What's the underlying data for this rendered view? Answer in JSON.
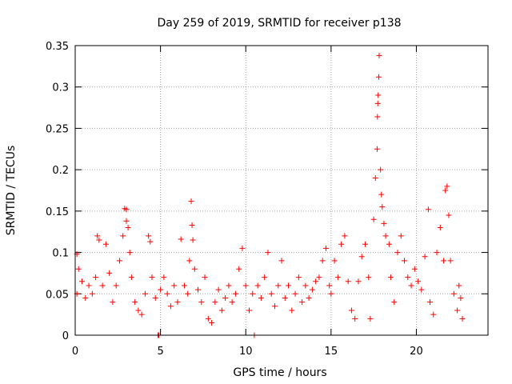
{
  "chart_data": {
    "type": "scatter",
    "title": "Day 259 of 2019, SRMTID for receiver p138",
    "xlabel": "GPS time / hours",
    "ylabel": "SRMTID / TECUs",
    "xlim": [
      0,
      24.2
    ],
    "ylim": [
      0,
      0.35
    ],
    "x_ticks": [
      0,
      5,
      10,
      15,
      20
    ],
    "x_tick_labels": [
      "0",
      "5",
      "10",
      "15",
      "20"
    ],
    "y_ticks": [
      0,
      0.05,
      0.1,
      0.15,
      0.2,
      0.25,
      0.3,
      0.35
    ],
    "y_tick_labels": [
      "0",
      "0.05",
      "0.1",
      "0.15",
      "0.2",
      "0.25",
      "0.3",
      "0.35"
    ],
    "grid": true,
    "marker": "+",
    "color": "#ff0000",
    "series": [
      {
        "name": "SRMTID",
        "points": [
          [
            0.1,
            0.05
          ],
          [
            0.1,
            0.098
          ],
          [
            0.2,
            0.08
          ],
          [
            0.4,
            0.065
          ],
          [
            0.6,
            0.045
          ],
          [
            0.8,
            0.06
          ],
          [
            1.0,
            0.05
          ],
          [
            1.2,
            0.07
          ],
          [
            1.3,
            0.12
          ],
          [
            1.4,
            0.115
          ],
          [
            1.6,
            0.06
          ],
          [
            1.8,
            0.11
          ],
          [
            2.0,
            0.075
          ],
          [
            2.2,
            0.04
          ],
          [
            2.4,
            0.06
          ],
          [
            2.6,
            0.09
          ],
          [
            2.8,
            0.12
          ],
          [
            2.9,
            0.153
          ],
          [
            3.0,
            0.152
          ],
          [
            3.0,
            0.138
          ],
          [
            3.1,
            0.13
          ],
          [
            3.2,
            0.1
          ],
          [
            3.3,
            0.07
          ],
          [
            3.5,
            0.04
          ],
          [
            3.7,
            0.03
          ],
          [
            3.9,
            0.025
          ],
          [
            4.1,
            0.05
          ],
          [
            4.3,
            0.12
          ],
          [
            4.4,
            0.113
          ],
          [
            4.5,
            0.07
          ],
          [
            4.7,
            0.045
          ],
          [
            4.85,
            0.0
          ],
          [
            4.9,
            0.0
          ],
          [
            5.0,
            0.055
          ],
          [
            5.2,
            0.07
          ],
          [
            5.4,
            0.05
          ],
          [
            5.6,
            0.035
          ],
          [
            5.8,
            0.06
          ],
          [
            6.0,
            0.04
          ],
          [
            6.2,
            0.116
          ],
          [
            6.4,
            0.06
          ],
          [
            6.6,
            0.05
          ],
          [
            6.7,
            0.09
          ],
          [
            6.8,
            0.162
          ],
          [
            6.85,
            0.133
          ],
          [
            6.9,
            0.115
          ],
          [
            7.0,
            0.08
          ],
          [
            7.2,
            0.055
          ],
          [
            7.4,
            0.04
          ],
          [
            7.6,
            0.07
          ],
          [
            7.8,
            0.02
          ],
          [
            8.0,
            0.015
          ],
          [
            8.2,
            0.04
          ],
          [
            8.4,
            0.055
          ],
          [
            8.6,
            0.03
          ],
          [
            8.8,
            0.045
          ],
          [
            9.0,
            0.06
          ],
          [
            9.2,
            0.04
          ],
          [
            9.4,
            0.05
          ],
          [
            9.6,
            0.08
          ],
          [
            9.8,
            0.105
          ],
          [
            10.0,
            0.06
          ],
          [
            10.2,
            0.03
          ],
          [
            10.4,
            0.05
          ],
          [
            10.5,
            0.0
          ],
          [
            10.7,
            0.06
          ],
          [
            10.9,
            0.045
          ],
          [
            11.1,
            0.07
          ],
          [
            11.3,
            0.1
          ],
          [
            11.5,
            0.05
          ],
          [
            11.7,
            0.035
          ],
          [
            11.9,
            0.06
          ],
          [
            12.1,
            0.09
          ],
          [
            12.3,
            0.045
          ],
          [
            12.5,
            0.06
          ],
          [
            12.7,
            0.03
          ],
          [
            12.9,
            0.05
          ],
          [
            13.1,
            0.07
          ],
          [
            13.3,
            0.04
          ],
          [
            13.5,
            0.06
          ],
          [
            13.7,
            0.045
          ],
          [
            13.9,
            0.055
          ],
          [
            14.1,
            0.065
          ],
          [
            14.3,
            0.07
          ],
          [
            14.5,
            0.09
          ],
          [
            14.7,
            0.105
          ],
          [
            14.9,
            0.06
          ],
          [
            15.0,
            0.05
          ],
          [
            15.2,
            0.09
          ],
          [
            15.4,
            0.07
          ],
          [
            15.6,
            0.11
          ],
          [
            15.8,
            0.12
          ],
          [
            16.0,
            0.065
          ],
          [
            16.2,
            0.03
          ],
          [
            16.4,
            0.02
          ],
          [
            16.6,
            0.065
          ],
          [
            16.8,
            0.095
          ],
          [
            17.0,
            0.11
          ],
          [
            17.2,
            0.07
          ],
          [
            17.3,
            0.02
          ],
          [
            17.5,
            0.14
          ],
          [
            17.6,
            0.19
          ],
          [
            17.7,
            0.225
          ],
          [
            17.72,
            0.264
          ],
          [
            17.74,
            0.28
          ],
          [
            17.76,
            0.29
          ],
          [
            17.8,
            0.312
          ],
          [
            17.82,
            0.338
          ],
          [
            17.9,
            0.2
          ],
          [
            17.95,
            0.17
          ],
          [
            18.0,
            0.155
          ],
          [
            18.1,
            0.135
          ],
          [
            18.2,
            0.12
          ],
          [
            18.4,
            0.11
          ],
          [
            18.5,
            0.07
          ],
          [
            18.7,
            0.04
          ],
          [
            18.9,
            0.1
          ],
          [
            19.1,
            0.12
          ],
          [
            19.3,
            0.09
          ],
          [
            19.5,
            0.07
          ],
          [
            19.7,
            0.06
          ],
          [
            19.9,
            0.08
          ],
          [
            20.1,
            0.065
          ],
          [
            20.3,
            0.055
          ],
          [
            20.5,
            0.095
          ],
          [
            20.7,
            0.152
          ],
          [
            20.8,
            0.04
          ],
          [
            21.0,
            0.025
          ],
          [
            21.2,
            0.1
          ],
          [
            21.4,
            0.13
          ],
          [
            21.6,
            0.09
          ],
          [
            21.7,
            0.175
          ],
          [
            21.8,
            0.18
          ],
          [
            21.9,
            0.145
          ],
          [
            22.0,
            0.09
          ],
          [
            22.2,
            0.05
          ],
          [
            22.4,
            0.03
          ],
          [
            22.5,
            0.06
          ],
          [
            22.6,
            0.045
          ],
          [
            22.7,
            0.02
          ]
        ]
      }
    ]
  }
}
